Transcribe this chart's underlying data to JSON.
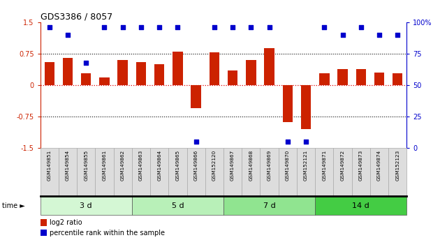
{
  "title": "GDS3386 / 8057",
  "samples": [
    "GSM149851",
    "GSM149854",
    "GSM149855",
    "GSM149861",
    "GSM149862",
    "GSM149863",
    "GSM149864",
    "GSM149865",
    "GSM149866",
    "GSM152120",
    "GSM149867",
    "GSM149868",
    "GSM149869",
    "GSM149870",
    "GSM152121",
    "GSM149871",
    "GSM149872",
    "GSM149873",
    "GSM149874",
    "GSM152123"
  ],
  "log2_ratio": [
    0.55,
    0.65,
    0.28,
    0.18,
    0.6,
    0.55,
    0.5,
    0.8,
    -0.55,
    0.78,
    0.35,
    0.6,
    0.88,
    -0.88,
    -1.05,
    0.28,
    0.38,
    0.38,
    0.3,
    0.28
  ],
  "percentile": [
    96,
    90,
    68,
    96,
    96,
    96,
    96,
    96,
    5,
    96,
    96,
    96,
    96,
    5,
    5,
    96,
    90,
    96,
    90,
    90
  ],
  "groups": [
    {
      "label": "3 d",
      "start": 0,
      "end": 5,
      "color": "#d4f7d4"
    },
    {
      "label": "5 d",
      "start": 5,
      "end": 10,
      "color": "#b8f0b8"
    },
    {
      "label": "7 d",
      "start": 10,
      "end": 15,
      "color": "#90e490"
    },
    {
      "label": "14 d",
      "start": 15,
      "end": 20,
      "color": "#44cc44"
    }
  ],
  "bar_color": "#cc2200",
  "dot_color": "#0000cc",
  "ylim": [
    -1.5,
    1.5
  ],
  "y2lim": [
    0,
    100
  ],
  "yticks": [
    -1.5,
    -0.75,
    0.0,
    0.75,
    1.5
  ],
  "y2ticks": [
    0,
    25,
    50,
    75,
    100
  ],
  "bg_color": "#ffffff",
  "label_bg": "#dddddd",
  "label_edge": "#aaaaaa"
}
